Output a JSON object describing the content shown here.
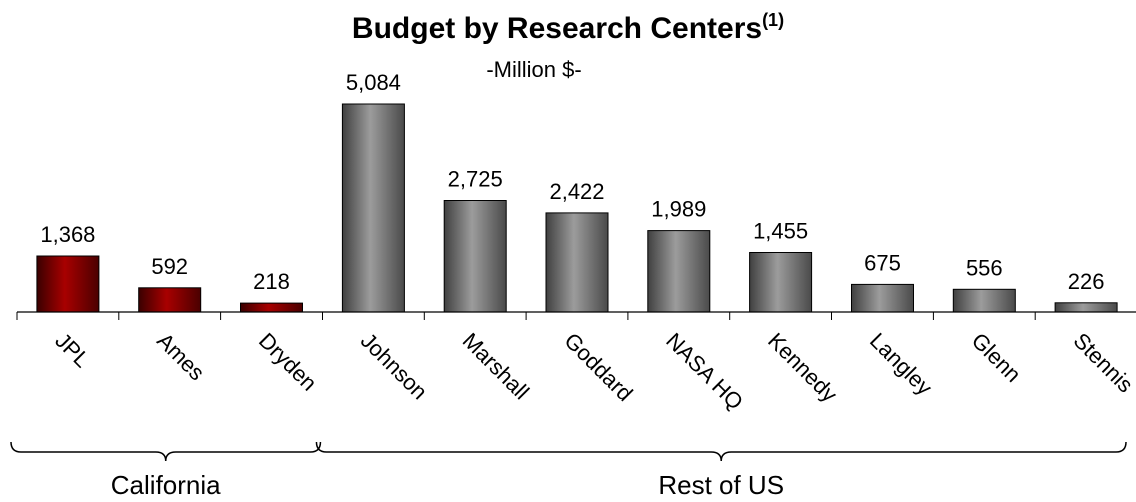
{
  "colors": {
    "california": "#8b0000",
    "rest_of_us": "#7a7a7a"
  },
  "chart_data": {
    "type": "bar",
    "title": "Budget by Research Centers",
    "title_superscript": "(1)",
    "subtitle": "-Million $-",
    "categories": [
      "JPL",
      "Ames",
      "Dryden",
      "Johnson",
      "Marshall",
      "Goddard",
      "NASA HQ",
      "Kennedy",
      "Langley",
      "Glenn",
      "Stennis"
    ],
    "values": [
      1368,
      592,
      218,
      5084,
      2725,
      2422,
      1989,
      1455,
      675,
      556,
      226
    ],
    "value_labels": [
      "1,368",
      "592",
      "218",
      "5,084",
      "2,725",
      "2,422",
      "1,989",
      "1,455",
      "675",
      "556",
      "226"
    ],
    "groups": [
      {
        "label": "California",
        "categories": [
          "JPL",
          "Ames",
          "Dryden"
        ]
      },
      {
        "label": "Rest of US",
        "categories": [
          "Johnson",
          "Marshall",
          "Goddard",
          "NASA HQ",
          "Kennedy",
          "Langley",
          "Glenn",
          "Stennis"
        ]
      }
    ],
    "xlabel": "",
    "ylabel": "",
    "ylim": [
      0,
      5084
    ],
    "grid": false,
    "legend": "none"
  }
}
